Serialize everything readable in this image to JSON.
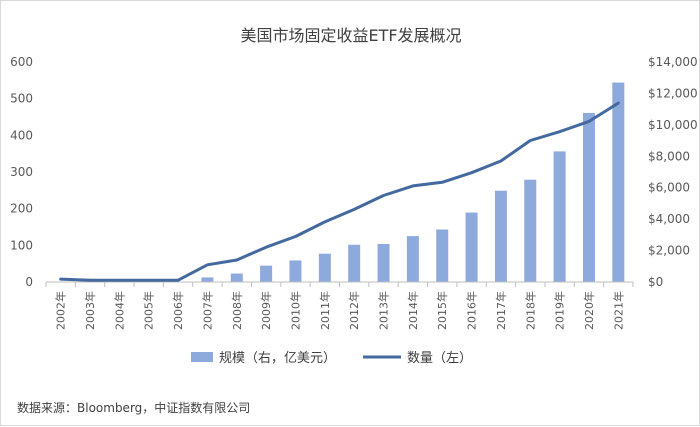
{
  "chart_data": {
    "type": "bar+line",
    "title": "美国市场固定收益ETF发展概况",
    "categories": [
      "2002年",
      "2003年",
      "2004年",
      "2005年",
      "2006年",
      "2007年",
      "2008年",
      "2009年",
      "2010年",
      "2011年",
      "2012年",
      "2013年",
      "2014年",
      "2015年",
      "2016年",
      "2017年",
      "2018年",
      "2019年",
      "2020年",
      "2021年"
    ],
    "series": [
      {
        "name": "规模（右，亿美元）",
        "type": "bar",
        "axis": "right",
        "color": "#8EA9DB",
        "values": [
          0,
          0,
          0,
          0,
          0,
          290,
          540,
          1040,
          1370,
          1800,
          2370,
          2420,
          2920,
          3340,
          4420,
          5810,
          6510,
          8310,
          10760,
          12690
        ]
      },
      {
        "name": "数量（左）",
        "type": "line",
        "axis": "left",
        "color": "#44699E",
        "values": [
          8,
          5,
          5,
          5,
          5,
          47,
          60,
          95,
          124,
          164,
          198,
          236,
          262,
          272,
          298,
          330,
          386,
          410,
          438,
          488
        ]
      }
    ],
    "left_axis": {
      "ylim": [
        0,
        600
      ],
      "ticks": [
        "0",
        "100",
        "200",
        "300",
        "400",
        "500",
        "600"
      ]
    },
    "right_axis": {
      "ylim": [
        0,
        14000
      ],
      "ticks": [
        "$0",
        "$2,000",
        "$4,000",
        "$6,000",
        "$8,000",
        "$10,000",
        "$12,000",
        "$14,000"
      ]
    },
    "legend_position": "bottom-center",
    "grid": false
  },
  "footer": {
    "source": "数据来源：Bloomberg，中证指数有限公司"
  }
}
